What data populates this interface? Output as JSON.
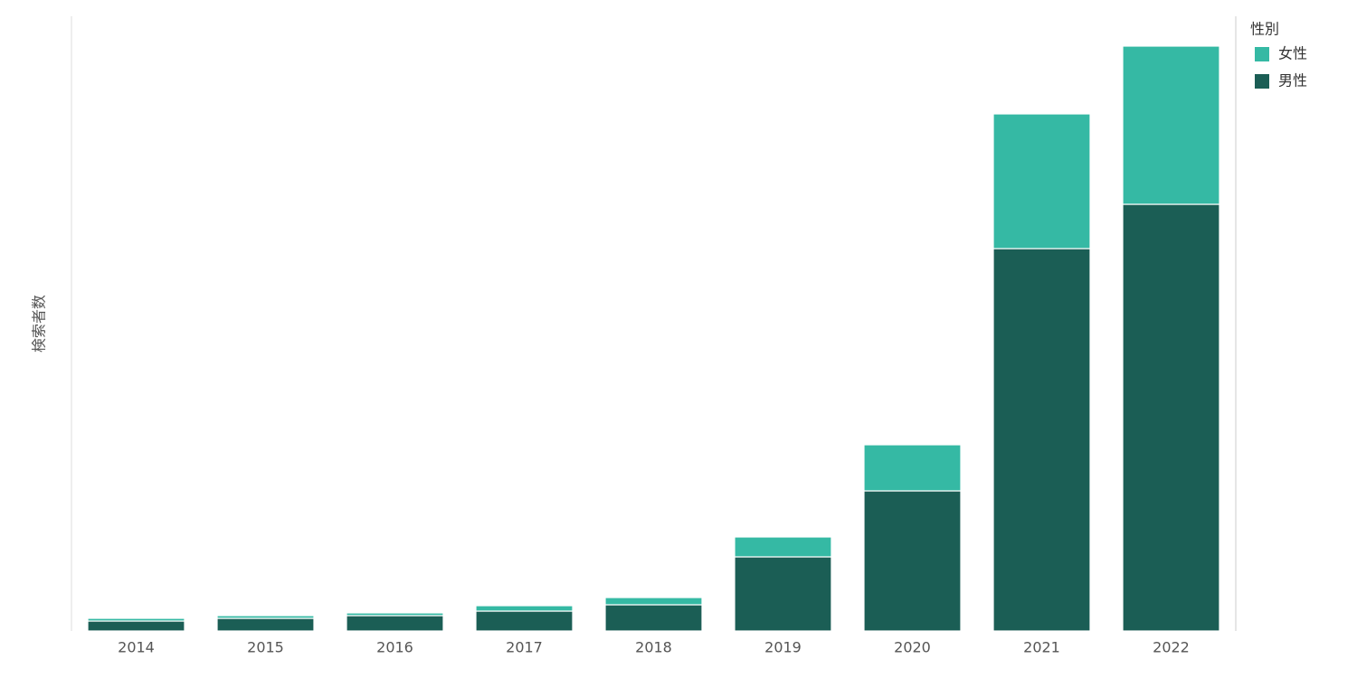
{
  "chart_data": {
    "type": "stacked-bar",
    "y_label": "検索者数",
    "legend_title": "性別",
    "legend": "top-right",
    "categories": [
      "2014",
      "2015",
      "2016",
      "2017",
      "2018",
      "2019",
      "2020",
      "2021",
      "2022"
    ],
    "series": [
      {
        "name": "女性",
        "color": "#35b9a4",
        "values": [
          3,
          3,
          3,
          6,
          8,
          22,
          51,
          149,
          175
        ]
      },
      {
        "name": "男性",
        "color": "#1b5e55",
        "values": [
          11,
          14,
          17,
          22,
          29,
          82,
          155,
          423,
          472
        ]
      }
    ],
    "ylim": [
      0,
      680
    ]
  }
}
